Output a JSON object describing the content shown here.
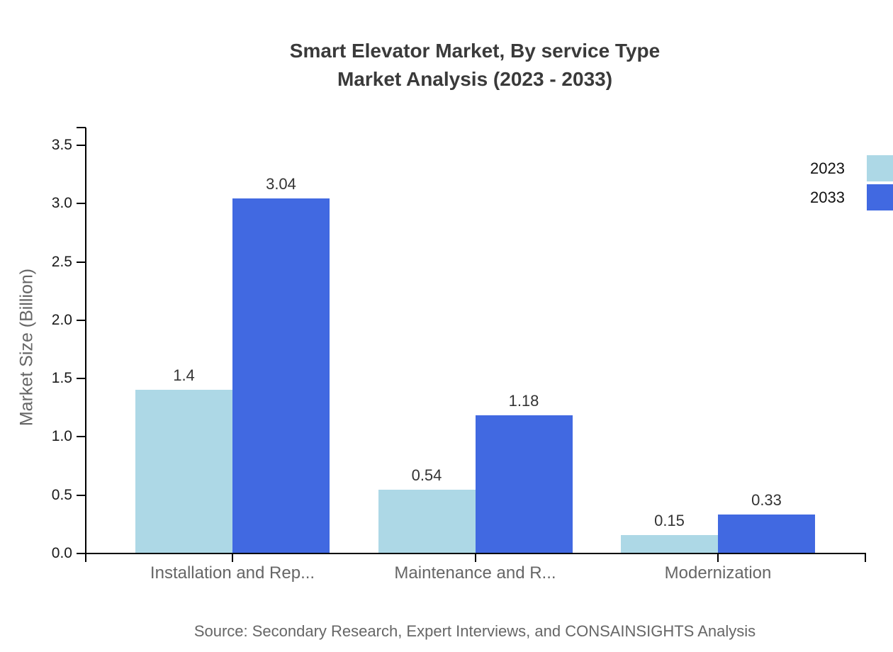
{
  "title": {
    "line1": "Smart Elevator Market, By service Type",
    "line2": "Market Analysis (2023 - 2033)"
  },
  "source": "Source: Secondary Research, Expert Interviews, and CONSAINSIGHTS Analysis",
  "chart_data": {
    "type": "bar",
    "title": "Smart Elevator Market, By service Type Market Analysis (2023 - 2033)",
    "categories": [
      "Installation and Rep...",
      "Maintenance and R...",
      "Modernization"
    ],
    "series": [
      {
        "name": "2023",
        "color": "#ADD8E6",
        "values": [
          1.4,
          0.54,
          0.15
        ],
        "value_labels": [
          "1.4",
          "0.54",
          "0.15"
        ]
      },
      {
        "name": "2033",
        "color": "#4169E1",
        "values": [
          3.04,
          1.18,
          0.33
        ],
        "value_labels": [
          "3.04",
          "1.18",
          "0.33"
        ]
      }
    ],
    "xlabel": "",
    "ylabel": "Market Size (Billion)",
    "ylim": [
      0,
      3.5
    ],
    "ytick_step": 0.5,
    "ytick_labels": [
      "0.0",
      "0.5",
      "1.0",
      "1.5",
      "2.0",
      "2.5",
      "3.0",
      "3.5"
    ],
    "grid": false,
    "legend_position": "top-right",
    "axis_color": "#000000"
  }
}
